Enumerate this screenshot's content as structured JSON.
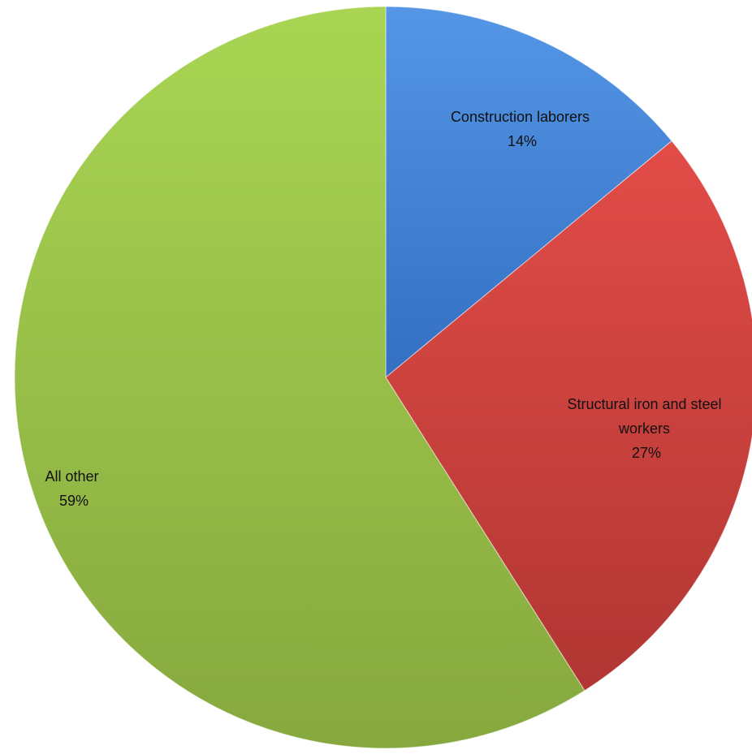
{
  "chart_data": {
    "type": "pie",
    "title": "",
    "slices": [
      {
        "label": "Construction laborers",
        "value": 14,
        "value_label": "14%",
        "color": "#4a86d6"
      },
      {
        "label": "Structural iron and steel workers",
        "value": 27,
        "value_label": "27%",
        "color": "#d24945"
      },
      {
        "label": "All other",
        "value": 59,
        "value_label": "59%",
        "color": "#9bc14b"
      }
    ],
    "start_angle": "12 o'clock",
    "direction": "clockwise",
    "legend": "none",
    "data_labels": "inside"
  }
}
